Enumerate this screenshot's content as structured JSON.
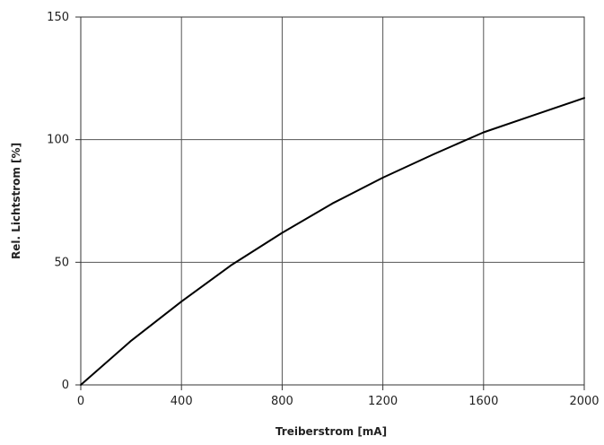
{
  "chart_data": {
    "type": "line",
    "title": "",
    "xlabel": "Treiberstrom [mA]",
    "ylabel": "Rel. Lichtstrom [%]",
    "xlim": [
      0,
      2000
    ],
    "ylim": [
      0,
      150
    ],
    "x_ticks": [
      0,
      400,
      800,
      1200,
      1600,
      2000
    ],
    "y_ticks": [
      0,
      50,
      100,
      150
    ],
    "grid": true,
    "legend": "none",
    "colors": {
      "line": "#000000",
      "grid": "#555555",
      "axis": "#333333",
      "text": "#222222"
    },
    "series": [
      {
        "x": [
          0,
          200,
          400,
          600,
          800,
          1000,
          1200,
          1400,
          1600,
          1800,
          2000
        ],
        "values": [
          0,
          18,
          34,
          49,
          62,
          74,
          84.5,
          94,
          103,
          110,
          117
        ]
      }
    ]
  }
}
